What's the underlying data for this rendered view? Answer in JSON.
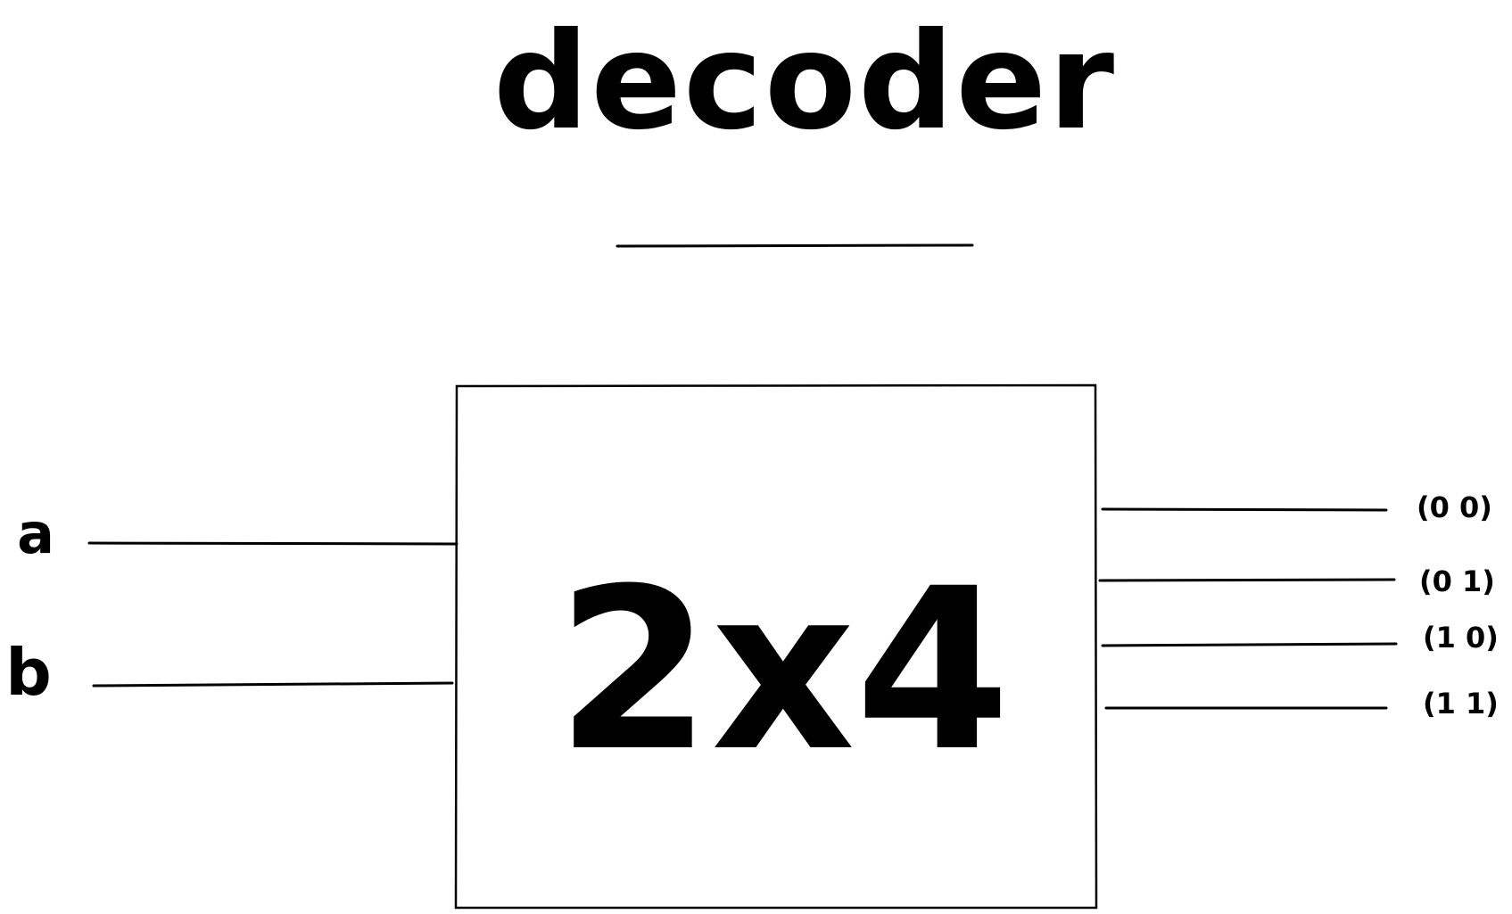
{
  "title": "decoder",
  "block_label": "2x4",
  "inputs": [
    {
      "label": "a"
    },
    {
      "label": "b"
    }
  ],
  "outputs": [
    {
      "label": "(0 0)"
    },
    {
      "label": "(0 1)"
    },
    {
      "label": "(1 0)"
    },
    {
      "label": "(1 1)"
    }
  ]
}
